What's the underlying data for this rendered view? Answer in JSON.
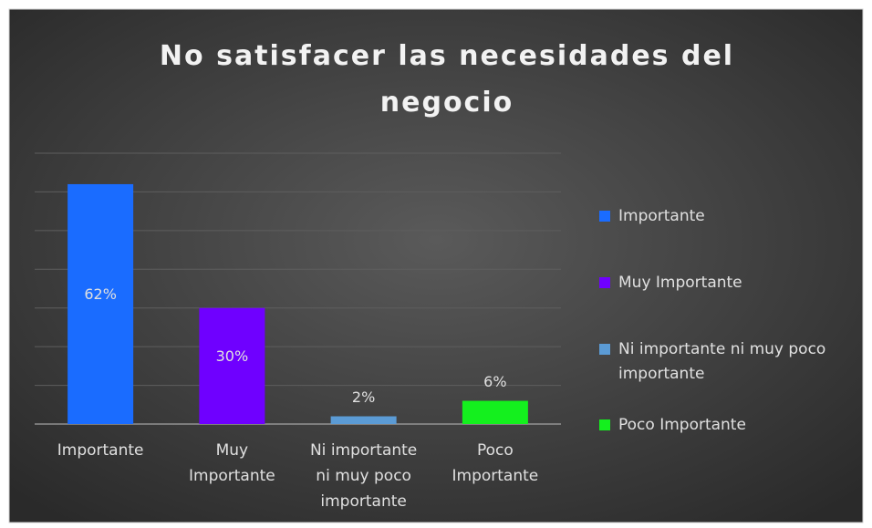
{
  "chart_data": {
    "type": "bar",
    "title": "No satisfacer las necesidades del negocio",
    "categories": [
      "Importante",
      "Muy Importante",
      "Ni importante ni muy poco importante",
      "Poco Importante"
    ],
    "values": [
      62,
      30,
      2,
      6
    ],
    "value_labels": [
      "62%",
      "30%",
      "2%",
      "6%"
    ],
    "colors": [
      "#1a6cff",
      "#6f00ff",
      "#5b9bd5",
      "#14f01e"
    ],
    "ylim": [
      0,
      70
    ],
    "yticks": [
      0,
      10,
      20,
      30,
      40,
      50,
      60,
      70
    ],
    "grid": true,
    "legend": "right"
  }
}
